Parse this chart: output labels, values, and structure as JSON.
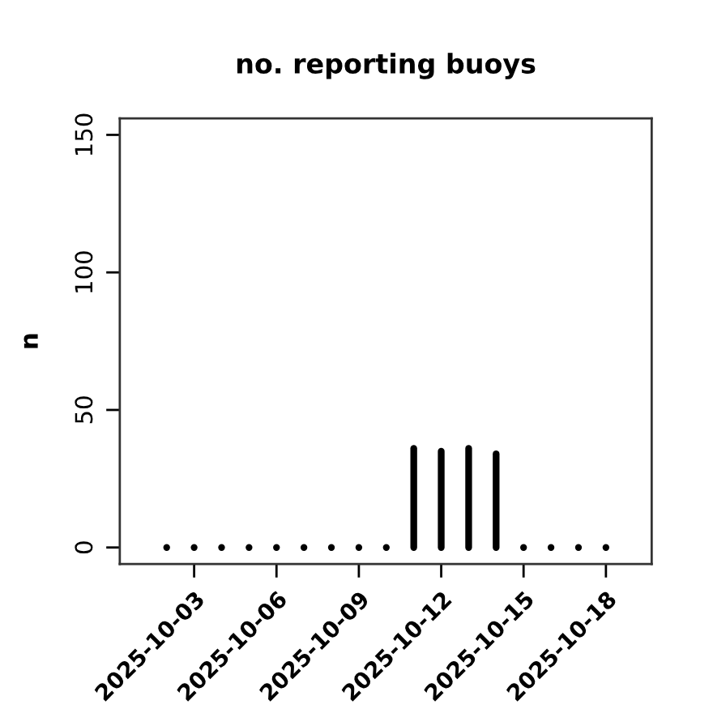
{
  "chart_data": {
    "type": "bar",
    "title": "no. reporting buoys",
    "ylabel": "n",
    "x": [
      "2025-10-02",
      "2025-10-03",
      "2025-10-04",
      "2025-10-05",
      "2025-10-06",
      "2025-10-07",
      "2025-10-08",
      "2025-10-09",
      "2025-10-10",
      "2025-10-11",
      "2025-10-12",
      "2025-10-13",
      "2025-10-14",
      "2025-10-15",
      "2025-10-16",
      "2025-10-17",
      "2025-10-18"
    ],
    "values": [
      0,
      0,
      0,
      0,
      0,
      0,
      0,
      0,
      0,
      36,
      35,
      36,
      34,
      0,
      0,
      0,
      0
    ],
    "color": "#000000",
    "xlim": [
      "2025-09-30T07:00",
      "2025-10-19T16:00"
    ],
    "xticks": [
      "2025-10-03",
      "2025-10-06",
      "2025-10-09",
      "2025-10-12",
      "2025-10-15",
      "2025-10-18"
    ],
    "ylim": [
      -6,
      156
    ],
    "yticks": [
      0,
      50,
      100,
      150
    ]
  }
}
